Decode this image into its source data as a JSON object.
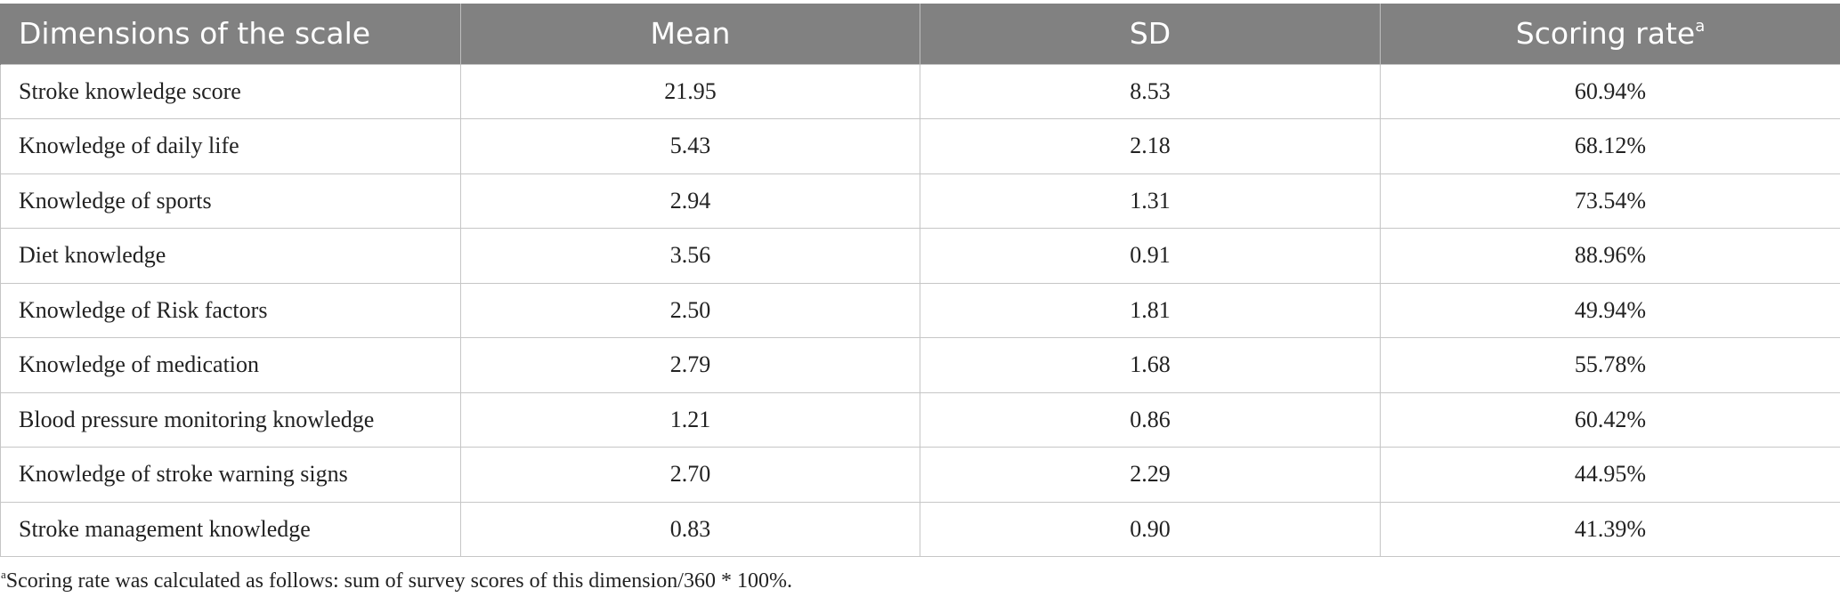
{
  "table": {
    "headers": [
      "Dimensions of the scale",
      "Mean",
      "SD",
      "Scoring rate"
    ],
    "header_superscript": "a",
    "rows": [
      [
        "Stroke knowledge score",
        "21.95",
        "8.53",
        "60.94%"
      ],
      [
        "Knowledge of daily life",
        "5.43",
        "2.18",
        "68.12%"
      ],
      [
        "Knowledge of sports",
        "2.94",
        "1.31",
        "73.54%"
      ],
      [
        "Diet knowledge",
        "3.56",
        "0.91",
        "88.96%"
      ],
      [
        "Knowledge of Risk factors",
        "2.50",
        "1.81",
        "49.94%"
      ],
      [
        "Knowledge of medication",
        "2.79",
        "1.68",
        "55.78%"
      ],
      [
        "Blood pressure monitoring knowledge",
        "1.21",
        "0.86",
        "60.42%"
      ],
      [
        "Knowledge of stroke warning signs",
        "2.70",
        "2.29",
        "44.95%"
      ],
      [
        "Stroke management knowledge",
        "0.83",
        "0.90",
        "41.39%"
      ]
    ]
  },
  "footnote": {
    "marker": "a",
    "text": "Scoring rate was calculated as follows: sum of survey scores of this dimension/360 * 100%."
  },
  "colors": {
    "header_background": "#818181",
    "header_text": "#ffffff",
    "grid_line": "#c6c6c6"
  }
}
